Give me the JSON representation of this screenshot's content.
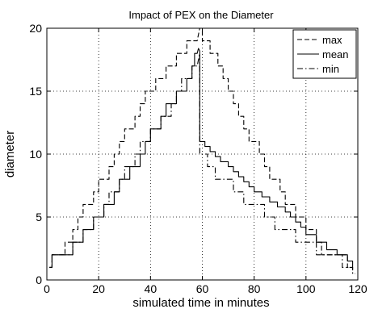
{
  "chart_data": {
    "type": "line",
    "title": "Impact of PEX on the Diameter",
    "xlabel": "simulated time in minutes",
    "ylabel": "diameter",
    "xlim": [
      0,
      120
    ],
    "ylim": [
      0,
      20
    ],
    "xticks": [
      0,
      20,
      40,
      60,
      80,
      100,
      120
    ],
    "yticks": [
      0,
      5,
      10,
      15,
      20
    ],
    "grid": true,
    "legend_position": "top-right",
    "series": [
      {
        "name": "max",
        "style": "dashed",
        "x": [
          1,
          2,
          2,
          7,
          7,
          10,
          10,
          12,
          12,
          14,
          14,
          16,
          16,
          18,
          18,
          20,
          20,
          22,
          22,
          24,
          24,
          26,
          26,
          28,
          28,
          30,
          30,
          32,
          32,
          34,
          34,
          36,
          36,
          38,
          38,
          40,
          40,
          42,
          42,
          44,
          44,
          46,
          46,
          48,
          48,
          50,
          50,
          52,
          52,
          54,
          54,
          56,
          56,
          58,
          59,
          60,
          60,
          63,
          63,
          66,
          66,
          68,
          68,
          70,
          70,
          72,
          72,
          74,
          74,
          76,
          76,
          78,
          78,
          80,
          80,
          82,
          82,
          84,
          84,
          86,
          86,
          88,
          88,
          90,
          90,
          92,
          92,
          94,
          94,
          96,
          96,
          98,
          98,
          100,
          100,
          102,
          102,
          104,
          104,
          106,
          106,
          108,
          108,
          110,
          110,
          113,
          113,
          116,
          116,
          118,
          118
        ],
        "y": [
          1,
          1,
          2,
          2,
          3,
          3,
          4,
          4,
          5,
          5,
          6,
          6,
          6,
          6,
          7,
          7,
          8,
          8,
          8,
          8,
          9,
          9,
          10,
          10,
          11,
          11,
          12,
          12,
          12,
          12,
          13,
          13,
          14,
          14,
          15,
          15,
          15,
          15,
          16,
          16,
          16,
          16,
          17,
          17,
          17,
          17,
          18,
          18,
          18,
          18,
          19,
          19,
          19,
          19,
          20,
          20,
          19,
          19,
          18,
          18,
          17,
          17,
          16,
          16,
          15,
          15,
          14,
          14,
          13,
          13,
          12,
          12,
          11,
          11,
          11,
          11,
          10,
          10,
          9,
          9,
          8,
          8,
          8,
          8,
          7,
          7,
          6,
          6,
          6,
          6,
          5,
          5,
          5,
          5,
          4,
          4,
          4,
          4,
          3,
          3,
          2,
          2,
          2,
          2,
          2,
          2,
          2,
          2,
          1,
          1,
          0.5
        ]
      },
      {
        "name": "mean",
        "style": "solid",
        "x": [
          1,
          2,
          2,
          7,
          7,
          10,
          10,
          12,
          12,
          14,
          14,
          16,
          16,
          18,
          18,
          20,
          20,
          22,
          22,
          24,
          24,
          26,
          26,
          28,
          28,
          30,
          30,
          32,
          32,
          34,
          34,
          36,
          36,
          38,
          38,
          40,
          40,
          42,
          42,
          44,
          44,
          46,
          46,
          48,
          48,
          50,
          50,
          52,
          52,
          54,
          54,
          56,
          56,
          57,
          57,
          58,
          58.5,
          59,
          59,
          61,
          61,
          63,
          63,
          65,
          65,
          67,
          67,
          70,
          70,
          72,
          72,
          74,
          74,
          76,
          76,
          78,
          78,
          80,
          80,
          83,
          83,
          86,
          86,
          89,
          89,
          92,
          92,
          94,
          94,
          96,
          96,
          98,
          98,
          100,
          100,
          104,
          104,
          108,
          108,
          112,
          112,
          116,
          116,
          118,
          118
        ],
        "y": [
          1,
          1,
          2,
          2,
          2,
          2,
          3,
          3,
          3,
          3,
          4,
          4,
          4,
          4,
          5,
          5,
          5,
          5,
          6,
          6,
          6,
          6,
          7,
          7,
          8,
          8,
          8,
          8,
          9,
          9,
          9,
          9,
          10,
          10,
          11,
          11,
          12,
          12,
          12,
          12,
          13,
          13,
          14,
          14,
          14,
          14,
          15,
          15,
          15,
          15,
          16,
          16,
          17,
          17,
          18,
          18,
          18.4,
          18.2,
          11,
          11,
          10.6,
          10.6,
          10.2,
          10.2,
          9.8,
          9.8,
          9.4,
          9.4,
          9,
          9,
          8.6,
          8.6,
          8.2,
          8.2,
          7.8,
          7.8,
          7.4,
          7.4,
          7,
          7,
          6.6,
          6.6,
          6.2,
          6.2,
          5.8,
          5.8,
          5.4,
          5.4,
          5,
          5,
          4.6,
          4.6,
          4.2,
          4.2,
          3.6,
          3.6,
          3,
          3,
          2.4,
          2.4,
          2,
          2,
          1.5,
          1.5,
          1
        ]
      },
      {
        "name": "min",
        "style": "dashdot",
        "x": [
          1,
          2,
          2,
          7,
          7,
          10,
          10,
          12,
          12,
          14,
          14,
          16,
          16,
          18,
          18,
          20,
          20,
          22,
          22,
          24,
          24,
          26,
          26,
          28,
          28,
          30,
          30,
          32,
          32,
          34,
          34,
          36,
          36,
          38,
          38,
          40,
          40,
          42,
          42,
          44,
          44,
          46,
          46,
          48,
          48,
          50,
          50,
          52,
          52,
          54,
          54,
          56,
          56,
          58,
          59,
          59,
          62,
          62,
          65,
          65,
          68,
          68,
          72,
          72,
          76,
          76,
          80,
          80,
          84,
          84,
          88,
          88,
          92,
          92,
          96,
          96,
          100,
          100,
          104,
          104,
          108,
          108,
          114,
          114,
          118,
          118,
          119
        ],
        "y": [
          1,
          1,
          2,
          2,
          2,
          2,
          3,
          3,
          3,
          3,
          4,
          4,
          4,
          4,
          5,
          5,
          5,
          5,
          6,
          6,
          7,
          7,
          7,
          7,
          8,
          8,
          9,
          9,
          9,
          9,
          10,
          10,
          11,
          11,
          11,
          11,
          12,
          12,
          12,
          12,
          13,
          13,
          13,
          13,
          14,
          14,
          15,
          15,
          16,
          16,
          16,
          16,
          17,
          17,
          18,
          10,
          10,
          9,
          9,
          8,
          8,
          8,
          8,
          7,
          7,
          6,
          6,
          6,
          6,
          5,
          5,
          4,
          4,
          4,
          4,
          3,
          3,
          3,
          3,
          2,
          2,
          2,
          2,
          1,
          1,
          0.5,
          0.5
        ]
      }
    ]
  }
}
